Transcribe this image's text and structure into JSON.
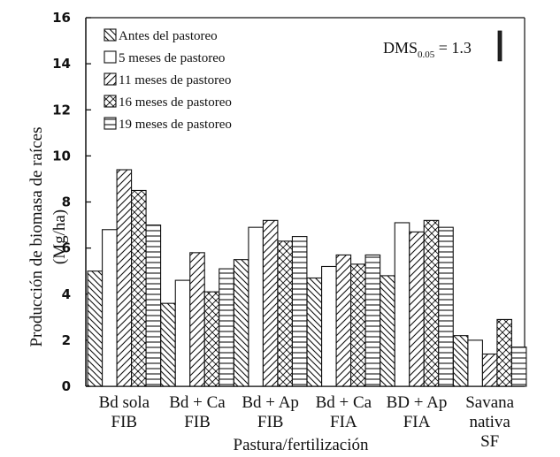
{
  "chart_data": {
    "type": "bar",
    "ylabel": "Producción de biomasa de raíces",
    "ylabel_unit": "(Mg/ha)",
    "xlabel": "Pastura/fertilización",
    "ylim": [
      0,
      16
    ],
    "yticks": [
      "0",
      "2",
      "4",
      "6",
      "8",
      "10",
      "12",
      "14",
      "16"
    ],
    "categories": [
      [
        "Bd sola",
        "FIB"
      ],
      [
        "Bd + Ca",
        "FIB"
      ],
      [
        "Bd + Ap",
        "FIB"
      ],
      [
        "Bd + Ca",
        "FIA"
      ],
      [
        "BD + Ap",
        "FIA"
      ],
      [
        "Savana",
        "nativa",
        "SF"
      ]
    ],
    "series": [
      {
        "name": "Antes del pastoreo",
        "pattern": "diag-down",
        "values": [
          5.0,
          3.6,
          5.5,
          4.7,
          4.8,
          2.2
        ]
      },
      {
        "name": "5 meses de pastoreo",
        "pattern": "blank",
        "values": [
          6.8,
          4.6,
          6.9,
          5.2,
          7.1,
          2.0
        ]
      },
      {
        "name": "11 meses de pastoreo",
        "pattern": "diag-up",
        "values": [
          9.4,
          5.8,
          7.2,
          5.7,
          6.7,
          1.4
        ]
      },
      {
        "name": "16 meses de pastoreo",
        "pattern": "crosshatch",
        "values": [
          8.5,
          4.1,
          6.3,
          5.3,
          7.2,
          2.9
        ]
      },
      {
        "name": "19 meses de pastoreo",
        "pattern": "horizontal",
        "values": [
          7.0,
          5.1,
          6.5,
          5.7,
          6.9,
          1.7
        ]
      }
    ],
    "annotation": {
      "text": "DMS",
      "subscript": "0.05",
      "suffix": " = 1.3",
      "value": 1.3
    },
    "grid": false,
    "legend_position": "top-left"
  }
}
